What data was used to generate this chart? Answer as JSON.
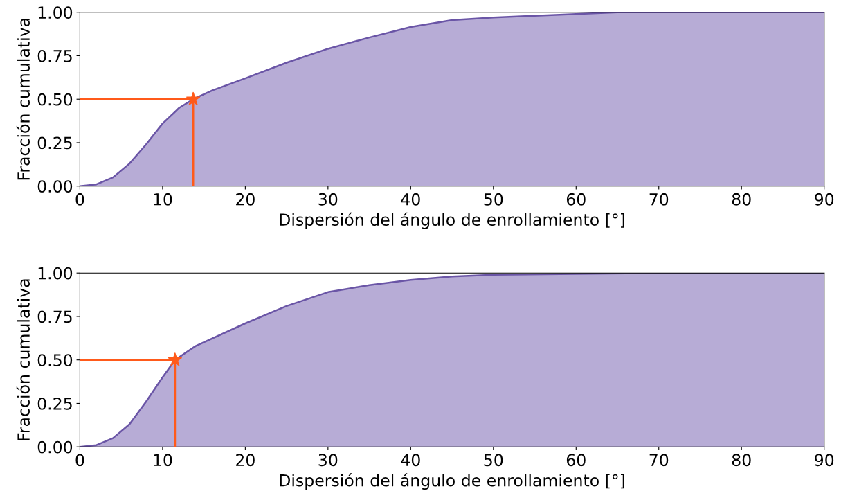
{
  "chart_data": [
    {
      "type": "area",
      "xlabel": "Dispersión del ángulo de enrollamiento [°]",
      "ylabel": "Fracción cumulativa",
      "xlim": [
        0,
        90
      ],
      "ylim": [
        0,
        1
      ],
      "xticks": [
        0,
        10,
        20,
        30,
        40,
        50,
        60,
        70,
        80,
        90
      ],
      "yticks": [
        {
          "value": 0,
          "label": "0.00"
        },
        {
          "value": 0.25,
          "label": "0.25"
        },
        {
          "value": 0.5,
          "label": "0.50"
        },
        {
          "value": 0.75,
          "label": "0.75"
        },
        {
          "value": 1,
          "label": "1.00"
        }
      ],
      "grid": false,
      "series": [
        {
          "color": "#6a55a6",
          "x": [
            0,
            2,
            4,
            6,
            8,
            10,
            12,
            13.7,
            16,
            20,
            25,
            30,
            35,
            40,
            45,
            50,
            55,
            60,
            65,
            90
          ],
          "values": [
            0,
            0.01,
            0.05,
            0.13,
            0.24,
            0.36,
            0.45,
            0.5,
            0.55,
            0.62,
            0.71,
            0.79,
            0.855,
            0.915,
            0.955,
            0.97,
            0.98,
            0.99,
            1.0,
            1.0
          ]
        },
        {
          "type": "line",
          "color": "#ff5a1a",
          "line_style": "solid",
          "marker": "none",
          "x": [
            0,
            13.7,
            13.7
          ],
          "values": [
            0.5,
            0.5,
            0
          ]
        },
        {
          "type": "scatter",
          "color": "#ff5a1a",
          "marker": "star",
          "x": [
            13.7
          ],
          "values": [
            0.5
          ]
        }
      ]
    },
    {
      "type": "area",
      "xlabel": "Dispersión del ángulo de enrollamiento [°]",
      "ylabel": "Fracción cumulativa",
      "xlim": [
        0,
        90
      ],
      "ylim": [
        0,
        1
      ],
      "xticks": [
        0,
        10,
        20,
        30,
        40,
        50,
        60,
        70,
        80,
        90
      ],
      "yticks": [
        {
          "value": 0,
          "label": "0.00"
        },
        {
          "value": 0.25,
          "label": "0.25"
        },
        {
          "value": 0.5,
          "label": "0.50"
        },
        {
          "value": 0.75,
          "label": "0.75"
        },
        {
          "value": 1,
          "label": "1.00"
        }
      ],
      "grid": false,
      "series": [
        {
          "color": "#6a55a6",
          "x": [
            0,
            2,
            4,
            6,
            8,
            10,
            11.5,
            14,
            20,
            25,
            30,
            35,
            40,
            45,
            50,
            60,
            70,
            90
          ],
          "values": [
            0,
            0.01,
            0.05,
            0.13,
            0.26,
            0.4,
            0.5,
            0.58,
            0.71,
            0.81,
            0.89,
            0.93,
            0.96,
            0.98,
            0.99,
            0.995,
            1.0,
            1.0
          ]
        },
        {
          "type": "line",
          "color": "#ff5a1a",
          "line_style": "solid",
          "marker": "none",
          "x": [
            0,
            11.5,
            11.5
          ],
          "values": [
            0.5,
            0.5,
            0
          ]
        },
        {
          "type": "scatter",
          "color": "#ff5a1a",
          "marker": "star",
          "x": [
            11.5
          ],
          "values": [
            0.5
          ]
        }
      ]
    }
  ]
}
